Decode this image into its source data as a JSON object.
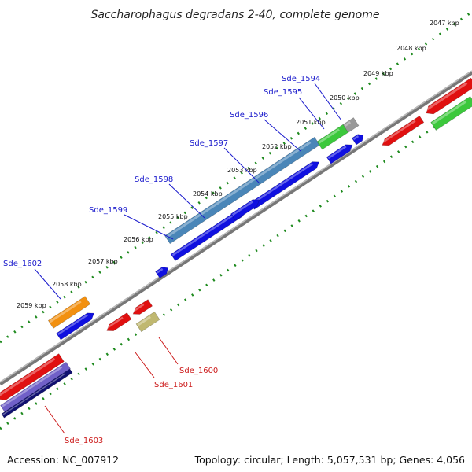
{
  "title": "Saccharophagus degradans 2-40, complete genome",
  "footer": {
    "accession": "Accession: NC_007912",
    "summary": "Topology: circular; Length: 5,057,531 bp; Genes: 4,056"
  },
  "ticks": [
    {
      "label": "2047 kbp"
    },
    {
      "label": "2048 kbp"
    },
    {
      "label": "2049 kbp"
    },
    {
      "label": "2050 kbp"
    },
    {
      "label": "2051 kbp"
    },
    {
      "label": "2052 kbp"
    },
    {
      "label": "2053 kbp"
    },
    {
      "label": "2054 kbp"
    },
    {
      "label": "2055 kbp"
    },
    {
      "label": "2056 kbp"
    },
    {
      "label": "2057 kbp"
    },
    {
      "label": "2058 kbp"
    },
    {
      "label": "2059 kbp"
    }
  ],
  "gene_labels": [
    {
      "name": "Sde_1594",
      "strand": "forward",
      "color": "#1a1acc"
    },
    {
      "name": "Sde_1595",
      "strand": "forward",
      "color": "#1a1acc"
    },
    {
      "name": "Sde_1596",
      "strand": "forward",
      "color": "#1a1acc"
    },
    {
      "name": "Sde_1597",
      "strand": "forward",
      "color": "#1a1acc"
    },
    {
      "name": "Sde_1598",
      "strand": "forward",
      "color": "#1a1acc"
    },
    {
      "name": "Sde_1599",
      "strand": "forward",
      "color": "#1a1acc"
    },
    {
      "name": "Sde_1602",
      "strand": "forward",
      "color": "#1a1acc"
    },
    {
      "name": "Sde_1600",
      "strand": "reverse",
      "color": "#cc1a1a"
    },
    {
      "name": "Sde_1601",
      "strand": "reverse",
      "color": "#cc1a1a"
    },
    {
      "name": "Sde_1603",
      "strand": "reverse",
      "color": "#cc1a1a"
    }
  ],
  "colors": {
    "backbone": "#8a8a8a",
    "tick": "#1e8a1e",
    "cds_forward": "#1010e0",
    "cds_reverse": "#e01010",
    "rna": "#999999",
    "feature_green": "#3cc83c",
    "feature_steelblue": "#4a86b8",
    "feature_orange": "#f29010",
    "feature_khaki": "#c0b870",
    "feature_purple": "#7060c8",
    "feature_navy": "#101070"
  }
}
